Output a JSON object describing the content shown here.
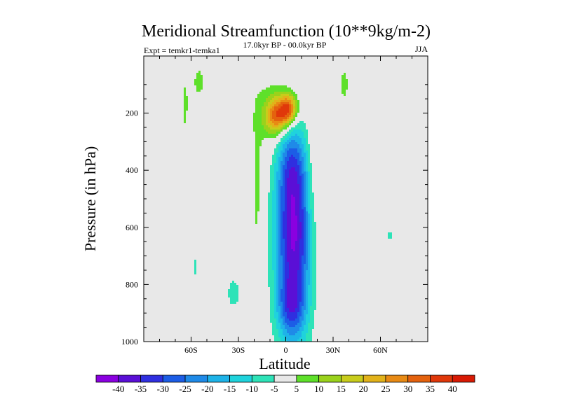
{
  "chart_data": {
    "type": "heatmap",
    "title": "Meridional Streamfunction (10**9kg/m-2)",
    "left_label": "Expt = temkr1-temka1",
    "center_label": "17.0kyr BP - 00.0kyr BP",
    "right_label": "JJA",
    "xlabel": "Latitude",
    "ylabel": "Pressure (in hPa)",
    "xlim": [
      -90,
      90
    ],
    "ylim": [
      1000,
      0
    ],
    "x_ticks": [
      {
        "value": -60,
        "label": "60S"
      },
      {
        "value": -30,
        "label": "30S"
      },
      {
        "value": 0,
        "label": "0"
      },
      {
        "value": 30,
        "label": "30N"
      },
      {
        "value": 60,
        "label": "60N"
      }
    ],
    "y_ticks": [
      {
        "value": 200,
        "label": "200"
      },
      {
        "value": 400,
        "label": "400"
      },
      {
        "value": 600,
        "label": "600"
      },
      {
        "value": 800,
        "label": "800"
      },
      {
        "value": 1000,
        "label": "1000"
      }
    ],
    "contour_levels": [
      -40,
      -35,
      -30,
      -25,
      -20,
      -15,
      -10,
      -5,
      5,
      10,
      15,
      20,
      25,
      30,
      35,
      40
    ],
    "level_labels": [
      "-40",
      "-35",
      "-30",
      "-25",
      "-20",
      "-15",
      "-10",
      "-5",
      "5",
      "10",
      "15",
      "20",
      "25",
      "30",
      "35",
      "40"
    ],
    "colors": [
      "#8a00e0",
      "#5a0fd6",
      "#2f2fe0",
      "#1c5de6",
      "#1f8ae8",
      "#1eb3e8",
      "#1fd3dc",
      "#2ee3b8",
      "#e8e8e8",
      "#5ee02a",
      "#9ad21c",
      "#c8cc1c",
      "#e2b21a",
      "#e88a14",
      "#e4620e",
      "#e0380a",
      "#d81a04"
    ],
    "features": [
      {
        "name": "strong-negative-cell",
        "x": 5,
        "y": 620,
        "sx": 8,
        "sy": 250,
        "value": -41
      },
      {
        "name": "negative-cell-upper",
        "x": 3,
        "y": 380,
        "sx": 6,
        "sy": 90,
        "value": -10
      },
      {
        "name": "negative-cell-lower",
        "x": 3,
        "y": 880,
        "sx": 6,
        "sy": 70,
        "value": -14
      },
      {
        "name": "upper-positive-cell-west",
        "x": -6,
        "y": 210,
        "sx": 5,
        "sy": 45,
        "value": 31
      },
      {
        "name": "upper-positive-cell-east",
        "x": 2,
        "y": 185,
        "sx": 4,
        "sy": 38,
        "value": 33
      },
      {
        "name": "upper-positive-envelope",
        "x": -3,
        "y": 180,
        "sx": 12,
        "sy": 120,
        "value": 6
      },
      {
        "name": "positive-band-equator-west",
        "x": -18,
        "y": 500,
        "sx": 3,
        "sy": 250,
        "value": 6
      },
      {
        "name": "positive-band-equator-east",
        "x": 17,
        "y": 450,
        "sx": 3.5,
        "sy": 220,
        "value": 6
      },
      {
        "name": "positive-band-south-mid",
        "x": -55,
        "y": 90,
        "sx": 4,
        "sy": 60,
        "value": 6
      },
      {
        "name": "positive-band-south-high",
        "x": -64,
        "y": 180,
        "sx": 2,
        "sy": 90,
        "value": 6
      },
      {
        "name": "positive-band-north",
        "x": 37,
        "y": 100,
        "sx": 3,
        "sy": 70,
        "value": 6
      },
      {
        "name": "negative-patch-south",
        "x": -33,
        "y": 830,
        "sx": 4,
        "sy": 50,
        "value": -7
      },
      {
        "name": "negative-patch-south-2",
        "x": -57,
        "y": 740,
        "sx": 1.5,
        "sy": 50,
        "value": -6
      },
      {
        "name": "negative-patch-north",
        "x": 66,
        "y": 630,
        "sx": 1.5,
        "sy": 30,
        "value": -6
      }
    ]
  }
}
